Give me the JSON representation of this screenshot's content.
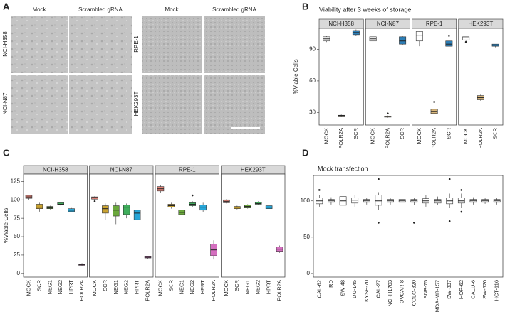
{
  "panel_labels": [
    "A",
    "B",
    "C",
    "D"
  ],
  "panel_a": {
    "column_labels": [
      "Mock",
      "Scrambled gRNA",
      "Mock",
      "Scrambled gRNA"
    ],
    "row_labels": [
      "NCI-H358",
      "NCI-N87",
      "RPE-1",
      "HEK293T"
    ]
  },
  "chart_data": [
    {
      "type": "box",
      "title": "Viability after 3 weeks of storage",
      "y_label": "%Viable Cells",
      "ylim": [
        18,
        110
      ],
      "yticks": [
        30,
        60,
        90
      ],
      "colors": [
        "#ffffff",
        "#d9b77c",
        "#2c7fb8"
      ],
      "facets": [
        {
          "strip": "NCI-H358",
          "categories": [
            "MOCK",
            "POLR2A",
            "SCR"
          ],
          "boxes": [
            {
              "low": 97,
              "q1": 98,
              "median": 100,
              "q3": 102,
              "high": 103
            },
            {
              "low": 26,
              "q1": 26.5,
              "median": 27,
              "q3": 27.3,
              "high": 28
            },
            {
              "low": 103,
              "q1": 104,
              "median": 106,
              "q3": 108,
              "high": 109
            }
          ]
        },
        {
          "strip": "NCI-N87",
          "categories": [
            "MOCK",
            "POLR2A",
            "SCR"
          ],
          "boxes": [
            {
              "low": 96,
              "q1": 98,
              "median": 100,
              "q3": 102,
              "high": 104
            },
            {
              "low": 25,
              "q1": 25.5,
              "median": 26,
              "q3": 26.5,
              "high": 27,
              "outliers": [
                29
              ]
            },
            {
              "low": 94,
              "q1": 95,
              "median": 98,
              "q3": 102,
              "high": 103
            }
          ]
        },
        {
          "strip": "RPE-1",
          "categories": [
            "MOCK",
            "POLR2A",
            "SCR"
          ],
          "boxes": [
            {
              "low": 93,
              "q1": 98,
              "median": 103,
              "q3": 107,
              "high": 108
            },
            {
              "low": 28,
              "q1": 29,
              "median": 31,
              "q3": 33,
              "high": 33,
              "outliers": [
                40
              ]
            },
            {
              "low": 91,
              "q1": 93,
              "median": 95,
              "q3": 98,
              "high": 99,
              "outliers": [
                103
              ]
            }
          ]
        },
        {
          "strip": "HEK293T",
          "categories": [
            "MOCK",
            "POLR2A",
            "SCR"
          ],
          "boxes": [
            {
              "low": 98,
              "q1": 99,
              "median": 101,
              "q3": 102,
              "high": 102,
              "outliers": [
                97
              ]
            },
            {
              "low": 41,
              "q1": 42,
              "median": 44,
              "q3": 46,
              "high": 47
            },
            {
              "low": 92,
              "q1": 93,
              "median": 94,
              "q3": 95,
              "high": 95
            }
          ]
        }
      ]
    },
    {
      "type": "box",
      "y_label": "%Viable Cells",
      "ylim": [
        -5,
        135
      ],
      "yticks": [
        0,
        25,
        50,
        75,
        100,
        125
      ],
      "colors": [
        "#e8857a",
        "#c9a230",
        "#6aa83c",
        "#3fae5c",
        "#27a6d8",
        "#d46fbf"
      ],
      "facets": [
        {
          "strip": "NCI-H358",
          "categories": [
            "MOCK",
            "SCR",
            "NEG1",
            "NEG2",
            "HPRT",
            "POLR2A"
          ],
          "boxes": [
            {
              "low": 100,
              "q1": 102,
              "median": 104,
              "q3": 106,
              "high": 107
            },
            {
              "low": 84,
              "q1": 88,
              "median": 90,
              "q3": 94,
              "high": 96
            },
            {
              "low": 87,
              "q1": 88,
              "median": 89,
              "q3": 91,
              "high": 92
            },
            {
              "low": 92,
              "q1": 93,
              "median": 94,
              "q3": 96,
              "high": 97
            },
            {
              "low": 83,
              "q1": 84,
              "median": 86,
              "q3": 88,
              "high": 89
            },
            {
              "low": 10,
              "q1": 11,
              "median": 12,
              "q3": 13,
              "high": 14
            }
          ]
        },
        {
          "strip": "NCI-N87",
          "categories": [
            "MOCK",
            "SCR",
            "NEG1",
            "NEG2",
            "HPRT",
            "POLR2A"
          ],
          "boxes": [
            {
              "low": 100,
              "q1": 101,
              "median": 103,
              "q3": 104,
              "high": 105,
              "outliers": [
                98
              ]
            },
            {
              "low": 73,
              "q1": 82,
              "median": 88,
              "q3": 92,
              "high": 95
            },
            {
              "low": 67,
              "q1": 78,
              "median": 86,
              "q3": 92,
              "high": 96
            },
            {
              "low": 75,
              "q1": 80,
              "median": 90,
              "q3": 93,
              "high": 95
            },
            {
              "low": 67,
              "q1": 73,
              "median": 82,
              "q3": 86,
              "high": 88
            },
            {
              "low": 20,
              "q1": 21,
              "median": 22,
              "q3": 23,
              "high": 24
            }
          ]
        },
        {
          "strip": "RPE-1",
          "categories": [
            "MOCK",
            "SCR",
            "NEG1",
            "NEG2",
            "HPRT",
            "POLR2A"
          ],
          "boxes": [
            {
              "low": 109,
              "q1": 112,
              "median": 115,
              "q3": 118,
              "high": 120
            },
            {
              "low": 88,
              "q1": 90,
              "median": 92,
              "q3": 94,
              "high": 96
            },
            {
              "low": 78,
              "q1": 80,
              "median": 83,
              "q3": 86,
              "high": 90
            },
            {
              "low": 90,
              "q1": 92,
              "median": 94,
              "q3": 96,
              "high": 98,
              "outliers": [
                106
              ]
            },
            {
              "low": 83,
              "q1": 86,
              "median": 90,
              "q3": 93,
              "high": 96
            },
            {
              "low": 19,
              "q1": 24,
              "median": 32,
              "q3": 40,
              "high": 45
            }
          ]
        },
        {
          "strip": "HEK293T",
          "categories": [
            "MOCK",
            "SCR",
            "NEG1",
            "NEG2",
            "HPRT",
            "POLR2A"
          ],
          "boxes": [
            {
              "low": 95,
              "q1": 96,
              "median": 98,
              "q3": 100,
              "high": 101
            },
            {
              "low": 87,
              "q1": 88,
              "median": 90,
              "q3": 91,
              "high": 92
            },
            {
              "low": 88,
              "q1": 89,
              "median": 91,
              "q3": 93,
              "high": 94
            },
            {
              "low": 93,
              "q1": 94,
              "median": 95,
              "q3": 97,
              "high": 98
            },
            {
              "low": 86,
              "q1": 88,
              "median": 90,
              "q3": 92,
              "high": 94
            },
            {
              "low": 28,
              "q1": 30,
              "median": 33,
              "q3": 36,
              "high": 38
            }
          ]
        }
      ]
    },
    {
      "type": "box",
      "title": "Mock transfection",
      "ylim": [
        -5,
        135
      ],
      "yticks": [
        0,
        50,
        100
      ],
      "color": "#ffffff",
      "facets": [
        {
          "categories": [
            "CAL-62",
            "RD",
            "SW-48",
            "DU-145",
            "KYSE-70",
            "CAL-27",
            "NCI-H1703",
            "OVCAR-8",
            "COLO-320",
            "SNB-75",
            "MDA-MB-157",
            "SW-837",
            "HOP-62",
            "CALU-6",
            "SW-620",
            "HCT-116"
          ],
          "boxes": [
            {
              "low": 92,
              "q1": 96,
              "median": 100,
              "q3": 104,
              "high": 108,
              "outliers": [
                115
              ]
            },
            {
              "low": 95,
              "q1": 98,
              "median": 100,
              "q3": 102,
              "high": 105
            },
            {
              "low": 88,
              "q1": 94,
              "median": 100,
              "q3": 106,
              "high": 112
            },
            {
              "low": 92,
              "q1": 97,
              "median": 101,
              "q3": 104,
              "high": 108
            },
            {
              "low": 95,
              "q1": 98,
              "median": 100,
              "q3": 102,
              "high": 104
            },
            {
              "low": 88,
              "q1": 94,
              "median": 100,
              "q3": 108,
              "high": 112,
              "outliers": [
                130,
                70
              ]
            },
            {
              "low": 95,
              "q1": 98,
              "median": 100,
              "q3": 102,
              "high": 104
            },
            {
              "low": 96,
              "q1": 98,
              "median": 100,
              "q3": 102,
              "high": 103
            },
            {
              "low": 94,
              "q1": 98,
              "median": 100,
              "q3": 102,
              "high": 104,
              "outliers": [
                70
              ]
            },
            {
              "low": 92,
              "q1": 97,
              "median": 100,
              "q3": 103,
              "high": 108
            },
            {
              "low": 94,
              "q1": 97,
              "median": 100,
              "q3": 102,
              "high": 106
            },
            {
              "low": 90,
              "q1": 96,
              "median": 100,
              "q3": 104,
              "high": 110,
              "outliers": [
                130,
                72
              ]
            },
            {
              "low": 90,
              "q1": 97,
              "median": 100,
              "q3": 104,
              "high": 110,
              "outliers": [
                115,
                85
              ]
            },
            {
              "low": 95,
              "q1": 98,
              "median": 100,
              "q3": 102,
              "high": 105
            },
            {
              "low": 96,
              "q1": 98,
              "median": 100,
              "q3": 102,
              "high": 104
            },
            {
              "low": 95,
              "q1": 98,
              "median": 100,
              "q3": 102,
              "high": 104
            }
          ]
        }
      ]
    }
  ]
}
